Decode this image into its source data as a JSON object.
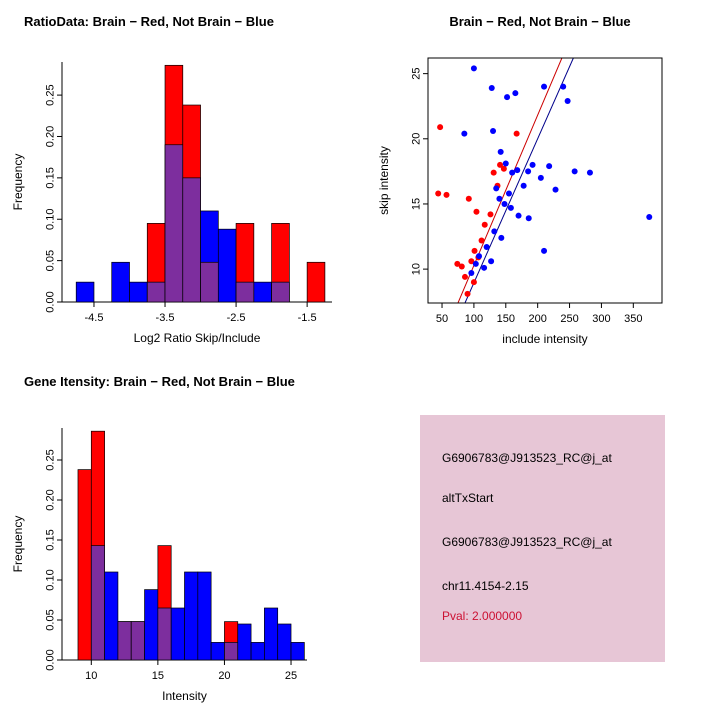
{
  "figure": {
    "background": "#FFFFFF"
  },
  "chart_data": [
    {
      "type": "bar",
      "title": "RatioData: Brain − Red, Not Brain − Blue",
      "xlabel": "Log2 Ratio Skip/Include",
      "ylabel": "Frequency",
      "xlim": [
        -4.95,
        -1.15
      ],
      "ylim": [
        0,
        0.29
      ],
      "xticks": [
        "-4.5",
        "-3.5",
        "-2.5",
        "-1.5"
      ],
      "yticks": [
        "0.00",
        "0.05",
        "0.10",
        "0.15",
        "0.20",
        "0.25"
      ],
      "bin_width": 0.25,
      "bins": [
        -4.75,
        -4.5,
        -4.25,
        -4.0,
        -3.75,
        -3.5,
        -3.25,
        -3.0,
        -2.75,
        -2.5,
        -2.25,
        -2.0,
        -1.75,
        -1.5
      ],
      "overlap_color": "#7D2E9E",
      "series": [
        {
          "name": "Brain",
          "color": "#FF0000",
          "values": [
            0,
            0,
            0,
            0,
            0.095,
            0.286,
            0.238,
            0.048,
            0,
            0.095,
            0,
            0.095,
            0,
            0.048
          ]
        },
        {
          "name": "Not Brain",
          "color": "#0000FF",
          "values": [
            0.024,
            0,
            0.048,
            0.024,
            0.024,
            0.19,
            0.15,
            0.11,
            0.088,
            0.024,
            0.024,
            0.024,
            0,
            0
          ]
        }
      ]
    },
    {
      "type": "scatter",
      "title": "Brain − Red, Not Brain − Blue",
      "xlabel": "include intensity",
      "ylabel": "skip intensity",
      "xlim": [
        28,
        395
      ],
      "ylim": [
        7.4,
        26.2
      ],
      "xticks": [
        "50",
        "100",
        "150",
        "200",
        "250",
        "300",
        "350"
      ],
      "yticks": [
        "10",
        "15",
        "20",
        "25"
      ],
      "series": [
        {
          "name": "Brain",
          "color": "#FF0000",
          "points": [
            [
              44,
              15.8
            ],
            [
              57,
              15.7
            ],
            [
              74,
              10.4
            ],
            [
              81,
              10.2
            ],
            [
              86,
              9.4
            ],
            [
              90,
              8.1
            ],
            [
              96,
              10.6
            ],
            [
              100,
              9.0
            ],
            [
              101,
              11.4
            ],
            [
              107,
              10.9
            ],
            [
              112,
              12.2
            ],
            [
              117,
              13.4
            ],
            [
              104,
              14.4
            ],
            [
              126,
              14.2
            ],
            [
              131,
              17.4
            ],
            [
              137,
              16.4
            ],
            [
              92,
              15.4
            ],
            [
              141,
              18.0
            ],
            [
              147,
              17.7
            ],
            [
              167,
              20.4
            ],
            [
              47,
              20.9
            ]
          ]
        },
        {
          "name": "Not Brain",
          "color": "#0000FF",
          "points": [
            [
              100,
              25.4
            ],
            [
              128,
              23.9
            ],
            [
              152,
              23.2
            ],
            [
              165,
              23.5
            ],
            [
              210,
              24.0
            ],
            [
              240,
              24.0
            ],
            [
              247,
              22.9
            ],
            [
              85,
              20.4
            ],
            [
              130,
              20.6
            ],
            [
              142,
              19.0
            ],
            [
              150,
              18.1
            ],
            [
              160,
              17.4
            ],
            [
              168,
              17.6
            ],
            [
              178,
              16.4
            ],
            [
              185,
              17.5
            ],
            [
              192,
              18.0
            ],
            [
              205,
              17.0
            ],
            [
              218,
              17.9
            ],
            [
              228,
              16.1
            ],
            [
              258,
              17.5
            ],
            [
              282,
              17.4
            ],
            [
              140,
              15.4
            ],
            [
              148,
              15.0
            ],
            [
              158,
              14.7
            ],
            [
              170,
              14.1
            ],
            [
              186,
              13.9
            ],
            [
              375,
              14.0
            ],
            [
              132,
              12.9
            ],
            [
              143,
              12.4
            ],
            [
              120,
              11.7
            ],
            [
              108,
              11.0
            ],
            [
              103,
              10.4
            ],
            [
              116,
              10.1
            ],
            [
              127,
              10.6
            ],
            [
              210,
              11.4
            ],
            [
              96,
              9.7
            ],
            [
              135,
              16.2
            ],
            [
              155,
              15.8
            ]
          ]
        }
      ],
      "lines": [
        {
          "color": "#CC0000",
          "x1": 75,
          "y1": 7.4,
          "x2": 238,
          "y2": 26.2
        },
        {
          "color": "#00008B",
          "x1": 86,
          "y1": 7.4,
          "x2": 256,
          "y2": 26.2
        }
      ]
    },
    {
      "type": "bar",
      "title": "Gene Itensity: Brain − Red, Not Brain − Blue",
      "xlabel": "Intensity",
      "ylabel": "Frequency",
      "xlim": [
        7.8,
        26.2
      ],
      "ylim": [
        0,
        0.29
      ],
      "xticks": [
        "10",
        "15",
        "20",
        "25"
      ],
      "yticks": [
        "0.00",
        "0.05",
        "0.10",
        "0.15",
        "0.20",
        "0.25"
      ],
      "bin_width": 1,
      "bins": [
        8,
        9,
        10,
        11,
        12,
        13,
        14,
        15,
        16,
        17,
        18,
        19,
        20,
        21,
        22,
        23,
        24,
        25
      ],
      "overlap_color": "#7D2E9E",
      "series": [
        {
          "name": "Brain",
          "color": "#FF0000",
          "values": [
            0,
            0.238,
            0.286,
            0,
            0.048,
            0.048,
            0,
            0.143,
            0,
            0,
            0,
            0,
            0.048,
            0,
            0,
            0,
            0,
            0
          ]
        },
        {
          "name": "Not Brain",
          "color": "#0000FF",
          "values": [
            0,
            0,
            0.143,
            0.11,
            0.048,
            0.048,
            0.088,
            0.065,
            0.065,
            0.11,
            0.11,
            0.022,
            0.022,
            0.045,
            0.022,
            0.065,
            0.045,
            0.022
          ]
        }
      ]
    }
  ],
  "info_box": {
    "bg_color": "#E7C6D6",
    "lines": [
      {
        "text": "G6906783@J913523_RC@j_at",
        "color": "#000000"
      },
      {
        "text": "altTxStart",
        "color": "#000000"
      },
      {
        "text": "G6906783@J913523_RC@j_at",
        "color": "#000000"
      },
      {
        "text": "chr11.4154-2.15",
        "color": "#000000"
      },
      {
        "text": "Pval: 2.000000",
        "color": "#CC1133"
      }
    ]
  }
}
